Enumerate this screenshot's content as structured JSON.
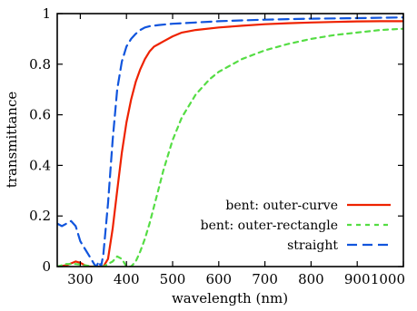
{
  "chart_data": {
    "type": "line",
    "xlabel": "wavelength (nm)",
    "ylabel": "transmittance",
    "xlim": [
      250,
      1000
    ],
    "ylim": [
      0,
      1
    ],
    "xticks": [
      300,
      400,
      500,
      600,
      700,
      800,
      900,
      1000
    ],
    "yticks": [
      0,
      0.2,
      0.4,
      0.6,
      0.8,
      1
    ],
    "ytick_labels": [
      "0",
      "0.2",
      "0.4",
      "0.6",
      "0.8",
      "1"
    ],
    "legend_position": "bottom-right",
    "grid": false,
    "series": [
      {
        "name": "bent: outer-curve",
        "color": "#ee2200",
        "dash": "solid",
        "x": [
          250,
          270,
          290,
          300,
          310,
          320,
          330,
          340,
          350,
          360,
          370,
          380,
          390,
          400,
          410,
          420,
          430,
          440,
          450,
          460,
          470,
          480,
          500,
          520,
          550,
          600,
          650,
          700,
          750,
          800,
          850,
          900,
          950,
          1000
        ],
        "y": [
          0.0,
          0.005,
          0.02,
          0.015,
          0.005,
          0.0,
          0.0,
          0.0,
          0.0,
          0.03,
          0.15,
          0.3,
          0.45,
          0.57,
          0.66,
          0.73,
          0.78,
          0.82,
          0.85,
          0.87,
          0.88,
          0.89,
          0.91,
          0.925,
          0.935,
          0.945,
          0.952,
          0.958,
          0.962,
          0.965,
          0.967,
          0.969,
          0.97,
          0.97
        ]
      },
      {
        "name": "bent: outer-rectangle",
        "color": "#55dd44",
        "dash": "short",
        "x": [
          250,
          270,
          290,
          310,
          330,
          350,
          370,
          380,
          390,
          400,
          410,
          420,
          430,
          440,
          450,
          460,
          470,
          480,
          500,
          520,
          550,
          580,
          600,
          650,
          700,
          750,
          800,
          850,
          900,
          950,
          1000
        ],
        "y": [
          0.0,
          0.01,
          0.01,
          0.005,
          0.0,
          0.0,
          0.02,
          0.04,
          0.03,
          0.0,
          0.0,
          0.02,
          0.06,
          0.11,
          0.17,
          0.24,
          0.31,
          0.38,
          0.5,
          0.59,
          0.68,
          0.74,
          0.77,
          0.82,
          0.855,
          0.88,
          0.9,
          0.915,
          0.925,
          0.935,
          0.94
        ]
      },
      {
        "name": "straight",
        "color": "#1155dd",
        "dash": "long",
        "x": [
          250,
          260,
          270,
          280,
          290,
          300,
          310,
          320,
          330,
          335,
          340,
          345,
          350,
          360,
          370,
          380,
          390,
          400,
          410,
          420,
          430,
          440,
          450,
          470,
          500,
          550,
          600,
          650,
          700,
          750,
          800,
          900,
          1000
        ],
        "y": [
          0.17,
          0.16,
          0.17,
          0.18,
          0.16,
          0.1,
          0.07,
          0.04,
          0.01,
          0.0,
          0.02,
          0.0,
          0.05,
          0.25,
          0.5,
          0.7,
          0.81,
          0.87,
          0.9,
          0.92,
          0.935,
          0.945,
          0.95,
          0.955,
          0.96,
          0.965,
          0.97,
          0.973,
          0.976,
          0.978,
          0.98,
          0.982,
          0.985
        ]
      }
    ]
  }
}
